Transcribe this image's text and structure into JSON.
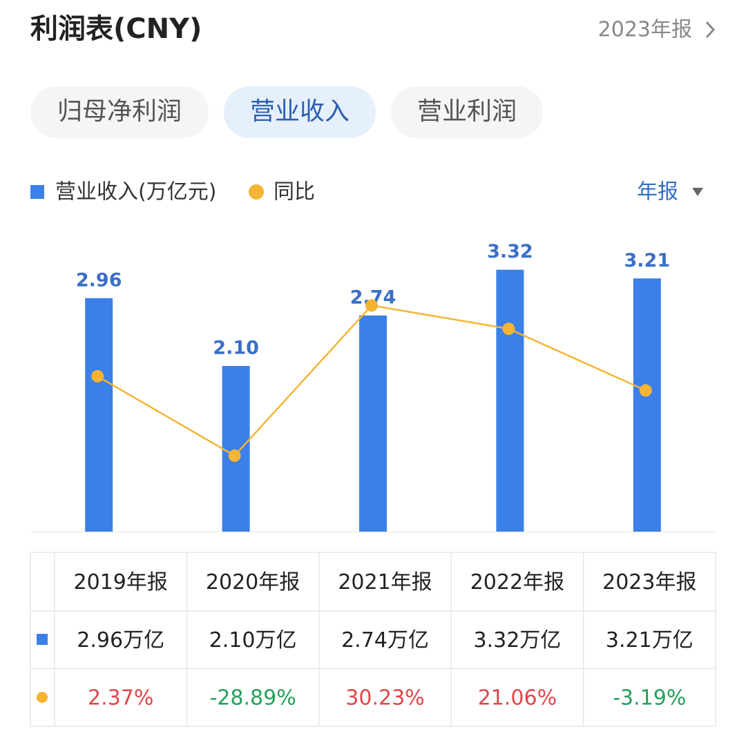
{
  "header": {
    "title": "利润表(CNY)",
    "report": "2023年报"
  },
  "tabs": {
    "items": [
      "归母净利润",
      "营业收入",
      "营业利润"
    ],
    "active": 1
  },
  "chart_data": {
    "type": "bar_line",
    "period": "年报",
    "ylim": [
      0,
      4
    ],
    "y2lim": [
      -58.8,
      65.4
    ],
    "series": [
      {
        "name": "营业收入(万亿元)",
        "color": "#3b7fe8",
        "values": [
          2.96,
          2.1,
          2.74,
          3.32,
          3.21
        ],
        "value_labels": [
          "2.96",
          "2.10",
          "2.74",
          "3.32",
          "3.21"
        ]
      },
      {
        "name": "同比",
        "color": "#f5b432",
        "axis": "y2",
        "values": [
          2.37,
          -28.89,
          30.23,
          21.06,
          -3.19
        ]
      }
    ]
  },
  "table": {
    "header": [
      "2019年报",
      "2020年报",
      "2021年报",
      "2022年报",
      "2023年报"
    ],
    "rows": [
      [
        "2.96万亿",
        "2.10万亿",
        "2.74万亿",
        "3.32万亿",
        "3.21万亿"
      ],
      [
        "2.37%",
        "-28.89%",
        "30.23%",
        "21.06%",
        "-3.19%"
      ]
    ]
  }
}
